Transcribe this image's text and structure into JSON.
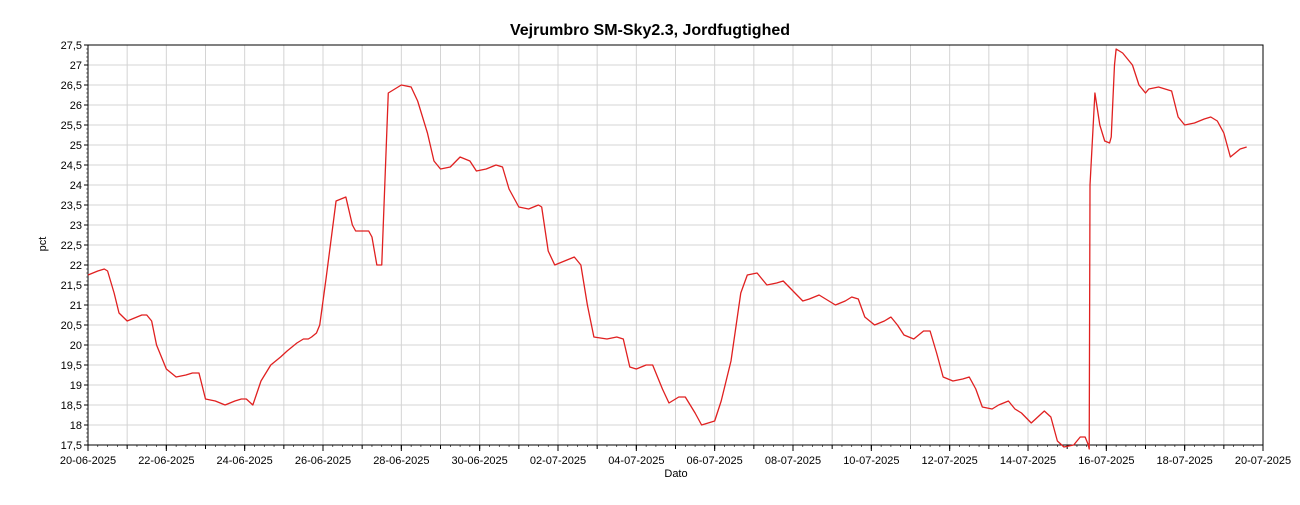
{
  "chart_data": {
    "type": "line",
    "title": "Vejrumbro SM-Sky2.3, Jordfugtighed",
    "xlabel": "Dato",
    "ylabel": "pct",
    "ylim": [
      17.5,
      27.5
    ],
    "yticks": [
      "17,5",
      "18",
      "18,5",
      "19",
      "19,5",
      "20",
      "20,5",
      "21",
      "21,5",
      "22",
      "22,5",
      "23",
      "23,5",
      "24",
      "24,5",
      "25",
      "25,5",
      "26",
      "26,5",
      "27",
      "27,5"
    ],
    "xlim": [
      "2025-06-20",
      "2025-07-20"
    ],
    "xticks": [
      "20-06-2025",
      "22-06-2025",
      "24-06-2025",
      "26-06-2025",
      "28-06-2025",
      "30-06-2025",
      "02-07-2025",
      "04-07-2025",
      "06-07-2025",
      "08-07-2025",
      "10-07-2025",
      "12-07-2025",
      "14-07-2025",
      "16-07-2025",
      "18-07-2025",
      "20-07-2025"
    ],
    "grid": true,
    "line_color": "#e02020",
    "series": [
      {
        "x": [
          "2025-06-20T00:00",
          "2025-06-20T06:00",
          "2025-06-20T10:00",
          "2025-06-20T12:00",
          "2025-06-20T16:00",
          "2025-06-20T19:00",
          "2025-06-21T00:00",
          "2025-06-21T06:00",
          "2025-06-21T09:00",
          "2025-06-21T12:00",
          "2025-06-21T15:00",
          "2025-06-21T18:00",
          "2025-06-22T00:00",
          "2025-06-22T06:00",
          "2025-06-22T12:00",
          "2025-06-22T16:00",
          "2025-06-22T20:00",
          "2025-06-23T00:00",
          "2025-06-23T06:00",
          "2025-06-23T12:00",
          "2025-06-23T18:00",
          "2025-06-23T22:00",
          "2025-06-24T01:00",
          "2025-06-24T05:00",
          "2025-06-24T10:00",
          "2025-06-24T16:00",
          "2025-06-24T22:00",
          "2025-06-25T02:00",
          "2025-06-25T08:00",
          "2025-06-25T12:00",
          "2025-06-25T15:00",
          "2025-06-25T17:00",
          "2025-06-25T20:00",
          "2025-06-25T22:00",
          "2025-06-26T02:00",
          "2025-06-26T08:00",
          "2025-06-26T14:00",
          "2025-06-26T18:00",
          "2025-06-26T20:00",
          "2025-06-26T23:00",
          "2025-06-27T02:00",
          "2025-06-27T04:00",
          "2025-06-27T06:00",
          "2025-06-27T09:00",
          "2025-06-27T12:00",
          "2025-06-27T16:00",
          "2025-06-27T20:00",
          "2025-06-28T00:00",
          "2025-06-28T06:00",
          "2025-06-28T10:00",
          "2025-06-28T16:00",
          "2025-06-28T20:00",
          "2025-06-29T00:00",
          "2025-06-29T06:00",
          "2025-06-29T12:00",
          "2025-06-29T18:00",
          "2025-06-29T22:00",
          "2025-06-30T04:00",
          "2025-06-30T10:00",
          "2025-06-30T14:00",
          "2025-06-30T18:00",
          "2025-07-01T00:00",
          "2025-07-01T06:00",
          "2025-07-01T12:00",
          "2025-07-01T14:00",
          "2025-07-01T18:00",
          "2025-07-01T22:00",
          "2025-07-02T04:00",
          "2025-07-02T10:00",
          "2025-07-02T14:00",
          "2025-07-02T18:00",
          "2025-07-02T22:00",
          "2025-07-03T06:00",
          "2025-07-03T12:00",
          "2025-07-03T16:00",
          "2025-07-03T20:00",
          "2025-07-04T00:00",
          "2025-07-04T06:00",
          "2025-07-04T10:00",
          "2025-07-04T16:00",
          "2025-07-04T20:00",
          "2025-07-05T02:00",
          "2025-07-05T06:00",
          "2025-07-05T12:00",
          "2025-07-05T16:00",
          "2025-07-05T20:00",
          "2025-07-06T00:00",
          "2025-07-06T04:00",
          "2025-07-06T10:00",
          "2025-07-06T16:00",
          "2025-07-06T20:00",
          "2025-07-07T02:00",
          "2025-07-07T08:00",
          "2025-07-07T14:00",
          "2025-07-07T18:00",
          "2025-07-08T00:00",
          "2025-07-08T06:00",
          "2025-07-08T10:00",
          "2025-07-08T16:00",
          "2025-07-08T20:00",
          "2025-07-09T02:00",
          "2025-07-09T08:00",
          "2025-07-09T12:00",
          "2025-07-09T16:00",
          "2025-07-09T20:00",
          "2025-07-10T02:00",
          "2025-07-10T08:00",
          "2025-07-10T12:00",
          "2025-07-10T16:00",
          "2025-07-10T20:00",
          "2025-07-11T02:00",
          "2025-07-11T08:00",
          "2025-07-11T12:00",
          "2025-07-11T16:00",
          "2025-07-11T20:00",
          "2025-07-12T02:00",
          "2025-07-12T08:00",
          "2025-07-12T12:00",
          "2025-07-12T16:00",
          "2025-07-12T20:00",
          "2025-07-13T02:00",
          "2025-07-13T06:00",
          "2025-07-13T12:00",
          "2025-07-13T16:00",
          "2025-07-13T20:00",
          "2025-07-14T02:00",
          "2025-07-14T06:00",
          "2025-07-14T10:00",
          "2025-07-14T14:00",
          "2025-07-14T18:00",
          "2025-07-14T22:00",
          "2025-07-15T04:00",
          "2025-07-15T08:00",
          "2025-07-15T11:00",
          "2025-07-15T13:00",
          "2025-07-15T13:30",
          "2025-07-15T14:00",
          "2025-07-15T17:00",
          "2025-07-15T20:00",
          "2025-07-15T23:00",
          "2025-07-16T02:00",
          "2025-07-16T03:00",
          "2025-07-16T05:00",
          "2025-07-16T06:00",
          "2025-07-16T10:00",
          "2025-07-16T16:00",
          "2025-07-16T20:00",
          "2025-07-17T00:00",
          "2025-07-17T02:00",
          "2025-07-17T08:00",
          "2025-07-17T12:00",
          "2025-07-17T16:00",
          "2025-07-17T20:00",
          "2025-07-18T00:00",
          "2025-07-18T06:00",
          "2025-07-18T12:00",
          "2025-07-18T16:00",
          "2025-07-18T20:00",
          "2025-07-19T00:00",
          "2025-07-19T04:00",
          "2025-07-19T10:00",
          "2025-07-19T14:00"
        ],
        "y": [
          21.75,
          21.85,
          21.9,
          21.85,
          21.3,
          20.8,
          20.6,
          20.7,
          20.75,
          20.75,
          20.6,
          20.0,
          19.4,
          19.2,
          19.25,
          19.3,
          19.3,
          18.65,
          18.6,
          18.5,
          18.6,
          18.65,
          18.65,
          18.5,
          19.1,
          19.5,
          19.7,
          19.85,
          20.05,
          20.15,
          20.15,
          20.2,
          20.3,
          20.5,
          21.7,
          23.6,
          23.7,
          23.0,
          22.85,
          22.85,
          22.85,
          22.85,
          22.7,
          22.0,
          22.0,
          26.3,
          26.4,
          26.5,
          26.45,
          26.1,
          25.3,
          24.6,
          24.4,
          24.45,
          24.7,
          24.6,
          24.35,
          24.4,
          24.5,
          24.45,
          23.9,
          23.45,
          23.4,
          23.5,
          23.45,
          22.35,
          22.0,
          22.1,
          22.2,
          22.0,
          21.0,
          20.2,
          20.15,
          20.2,
          20.15,
          19.45,
          19.4,
          19.5,
          19.5,
          18.9,
          18.55,
          18.7,
          18.7,
          18.3,
          18.0,
          18.05,
          18.1,
          18.6,
          19.6,
          21.3,
          21.75,
          21.8,
          21.5,
          21.55,
          21.6,
          21.35,
          21.1,
          21.15,
          21.25,
          21.15,
          21.0,
          21.1,
          21.2,
          21.15,
          20.7,
          20.5,
          20.6,
          20.7,
          20.5,
          20.25,
          20.15,
          20.35,
          20.35,
          19.8,
          19.2,
          19.1,
          19.15,
          19.2,
          18.9,
          18.45,
          18.4,
          18.5,
          18.6,
          18.4,
          18.3,
          18.05,
          18.2,
          18.35,
          18.2,
          17.6,
          17.45,
          17.5,
          17.7,
          17.7,
          17.5,
          17.4,
          24.0,
          26.3,
          25.5,
          25.1,
          25.05,
          25.2,
          27.0,
          27.4,
          27.3,
          27.0,
          26.5,
          26.3,
          26.4,
          26.45,
          26.4,
          26.35,
          25.7,
          25.5,
          25.55,
          25.65,
          25.7,
          25.6,
          25.3,
          24.7,
          24.9,
          24.95
        ]
      }
    ]
  }
}
